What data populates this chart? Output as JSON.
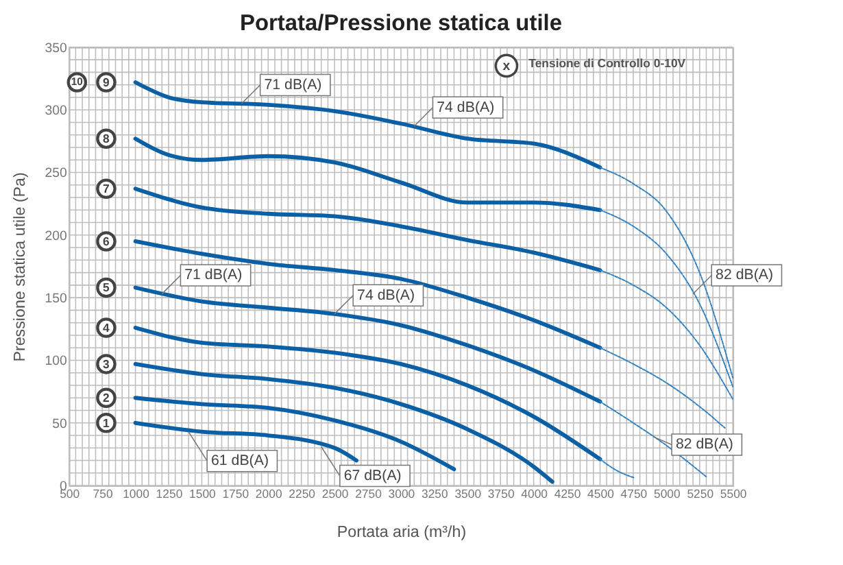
{
  "chart_data": {
    "type": "line",
    "title": "Portata/Pressione statica utile",
    "xlabel": "Portata aria (m³/h)",
    "ylabel": "Pressione statica utile (Pa)",
    "xlim": [
      500,
      5500
    ],
    "xticks": [
      500,
      750,
      1000,
      1250,
      1500,
      1750,
      2000,
      2250,
      2500,
      2750,
      3000,
      3250,
      3500,
      3750,
      4000,
      4250,
      4500,
      4750,
      5000,
      5250,
      5500
    ],
    "ylim": [
      0,
      350
    ],
    "yticks": [
      0,
      50,
      100,
      150,
      200,
      250,
      300,
      350
    ],
    "grid": true,
    "marker": "none",
    "series": [
      {
        "name": "1",
        "color": "#0b5fa5",
        "line_style": "solid",
        "x": [
          1000,
          1500,
          2000,
          2500,
          2665
        ],
        "values": [
          50,
          43,
          40,
          30,
          20
        ]
      },
      {
        "name": "2",
        "color": "#0b5fa5",
        "line_style": "solid",
        "x": [
          1000,
          1500,
          2000,
          2500,
          3000,
          3400
        ],
        "values": [
          70,
          65,
          62,
          52,
          35,
          13
        ]
      },
      {
        "name": "3",
        "color": "#0b5fa5",
        "line_style": "solid",
        "x": [
          1000,
          1500,
          2000,
          2500,
          3000,
          3500,
          4000,
          4140
        ],
        "values": [
          97,
          89,
          85,
          78,
          65,
          45,
          15,
          3
        ]
      },
      {
        "name": "4",
        "color": "#0b5fa5",
        "line_style": "solid",
        "x": [
          1000,
          1500,
          2000,
          2500,
          3000,
          3500,
          4000,
          4500
        ],
        "values": [
          126,
          114,
          111,
          106,
          97,
          80,
          55,
          21
        ]
      },
      {
        "name": "5",
        "color": "#0b5fa5",
        "line_style": "solid",
        "x": [
          1000,
          1500,
          2000,
          2500,
          3000,
          3500,
          4000,
          4500
        ],
        "values": [
          158,
          147,
          142,
          137,
          128,
          112,
          92,
          67
        ]
      },
      {
        "name": "6",
        "color": "#0b5fa5",
        "line_style": "solid",
        "x": [
          1000,
          1500,
          2000,
          2500,
          3000,
          3500,
          4000,
          4500
        ],
        "values": [
          195,
          185,
          177,
          172,
          165,
          150,
          132,
          110
        ]
      },
      {
        "name": "7",
        "color": "#0b5fa5",
        "line_style": "solid",
        "x": [
          1000,
          1500,
          2000,
          2500,
          3000,
          3500,
          4000,
          4500
        ],
        "values": [
          237,
          222,
          217,
          215,
          207,
          196,
          186,
          172
        ]
      },
      {
        "name": "8",
        "color": "#0b5fa5",
        "line_style": "solid",
        "x": [
          1000,
          1250,
          1500,
          2000,
          2500,
          3000,
          3500,
          4000,
          4500
        ],
        "values": [
          277,
          264,
          260,
          263,
          258,
          242,
          226,
          226,
          220
        ]
      },
      {
        "name": "9",
        "color": "#0b5fa5",
        "line_style": "solid",
        "x": [
          1000,
          1250,
          1500,
          2000,
          2500,
          3000,
          3500,
          4000,
          4500
        ],
        "values": [
          322,
          310,
          306,
          304,
          299,
          289,
          277,
          273,
          254
        ]
      },
      {
        "color": "#2f7fc1",
        "line_style": "dashed",
        "x": [
          4500,
          4625,
          4762
        ],
        "values": [
          21,
          12,
          6
        ]
      },
      {
        "color": "#2f7fc1",
        "line_style": "dashed",
        "x": [
          4500,
          4750,
          5000,
          5300
        ],
        "values": [
          67,
          50,
          32,
          7
        ]
      },
      {
        "color": "#2f7fc1",
        "line_style": "dashed",
        "x": [
          4500,
          4750,
          5000,
          5250,
          5440
        ],
        "values": [
          110,
          97,
          82,
          63,
          46
        ]
      },
      {
        "color": "#2f7fc1",
        "line_style": "dashed",
        "x": [
          4500,
          4750,
          5000,
          5250,
          5500
        ],
        "values": [
          172,
          160,
          142,
          112,
          69
        ]
      },
      {
        "color": "#2f7fc1",
        "line_style": "dashed",
        "x": [
          4500,
          4750,
          5000,
          5250,
          5500
        ],
        "values": [
          220,
          207,
          185,
          145,
          79
        ]
      },
      {
        "color": "#2f7fc1",
        "line_style": "dashed",
        "x": [
          4500,
          4750,
          5000,
          5250,
          5500
        ],
        "values": [
          254,
          241,
          219,
          170,
          86
        ]
      }
    ],
    "annotations": [
      {
        "text": "71 dB(A)",
        "x": 1800,
        "y": 305
      },
      {
        "text": "74 dB(A)",
        "x": 3100,
        "y": 287
      },
      {
        "text": "82 dB(A)",
        "x": 5200,
        "y": 153
      },
      {
        "text": "71 dB(A)",
        "x": 1200,
        "y": 153
      },
      {
        "text": "74 dB(A)",
        "x": 2500,
        "y": 137
      },
      {
        "text": "61 dB(A)",
        "x": 1400,
        "y": 43
      },
      {
        "text": "67 dB(A)",
        "x": 2400,
        "y": 31
      },
      {
        "text": "82 dB(A)",
        "x": 4900,
        "y": 39
      },
      "10",
      "x",
      "Tensione di Controllo 0-10V"
    ]
  }
}
